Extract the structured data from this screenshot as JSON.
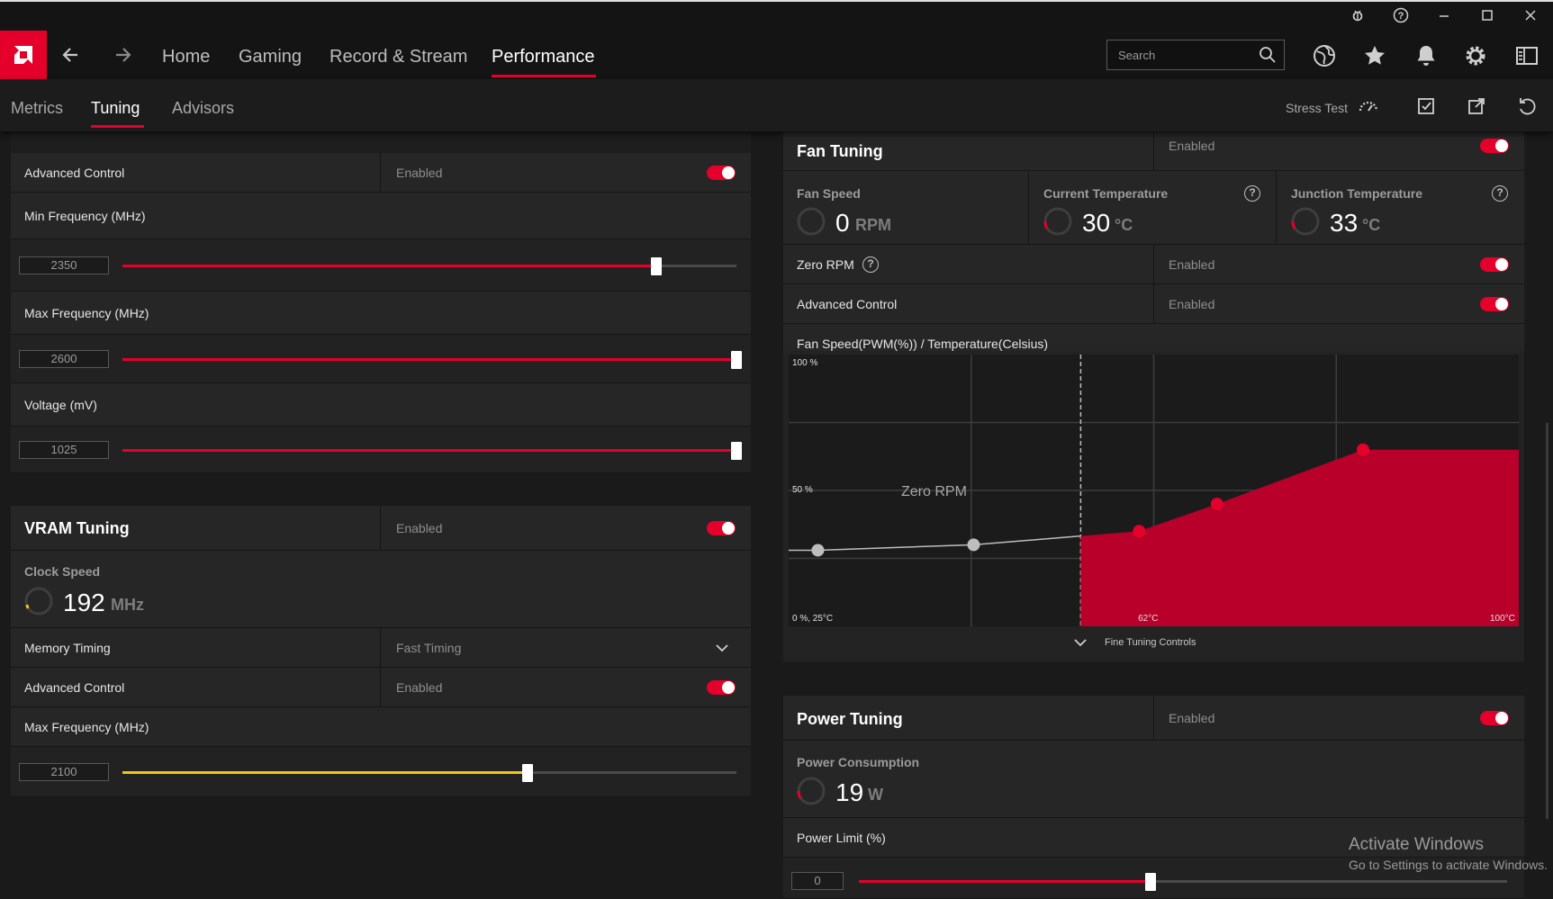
{
  "window": {
    "controls": [
      "bug-icon",
      "help-icon",
      "minimize-icon",
      "maximize-icon",
      "close-icon"
    ]
  },
  "nav": {
    "tabs": [
      "Home",
      "Gaming",
      "Record & Stream",
      "Performance"
    ],
    "active_tab": "Performance",
    "search_placeholder": "Search",
    "icons": [
      "globe-icon",
      "star-icon",
      "bell-icon",
      "gear-icon",
      "sidebar-icon"
    ]
  },
  "subnav": {
    "tabs": [
      "Metrics",
      "Tuning",
      "Advisors"
    ],
    "active_tab": "Tuning",
    "stress_test": "Stress Test"
  },
  "gpu_tuning": {
    "advanced_control_label": "Advanced Control",
    "advanced_control_value": "Enabled",
    "min_freq_label": "Min Frequency (MHz)",
    "min_freq_value": "2350",
    "min_freq_fraction": 0.87,
    "max_freq_label": "Max Frequency (MHz)",
    "max_freq_value": "2600",
    "max_freq_fraction": 1.0,
    "voltage_label": "Voltage (mV)",
    "voltage_value": "1025",
    "voltage_fraction": 1.0
  },
  "vram_tuning": {
    "title": "VRAM Tuning",
    "enabled_value": "Enabled",
    "clock_speed_label": "Clock Speed",
    "clock_speed_value": "192",
    "clock_speed_unit": "MHz",
    "memory_timing_label": "Memory Timing",
    "memory_timing_value": "Fast Timing",
    "advanced_control_label": "Advanced Control",
    "advanced_control_value": "Enabled",
    "max_freq_label": "Max Frequency (MHz)",
    "max_freq_value": "2100",
    "max_freq_fraction": 0.66
  },
  "fan_tuning": {
    "title": "Fan Tuning",
    "enabled_value": "Enabled",
    "fan_speed_label": "Fan Speed",
    "fan_speed_value": "0",
    "fan_speed_unit": "RPM",
    "current_temp_label": "Current Temperature",
    "current_temp_value": "30",
    "current_temp_unit": "°C",
    "junction_temp_label": "Junction Temperature",
    "junction_temp_value": "33",
    "junction_temp_unit": "°C",
    "zero_rpm_label": "Zero RPM",
    "zero_rpm_value": "Enabled",
    "advanced_control_label": "Advanced Control",
    "advanced_control_value": "Enabled",
    "curve_label": "Fan Speed(PWM(%)) / Temperature(Celsius)",
    "fine_tuning_label": "Fine Tuning Controls"
  },
  "chart_data": {
    "type": "area",
    "title": "Fan Speed(PWM(%)) / Temperature(Celsius)",
    "y_labels": [
      "100 %",
      "50 %",
      "0 %, 25°C"
    ],
    "x_labels": [
      "62°C",
      "100°C"
    ],
    "zero_rpm_label": "Zero RPM",
    "zero_rpm_threshold_x": 55,
    "xlim": [
      25,
      100
    ],
    "ylim": [
      0,
      100
    ],
    "points": [
      {
        "x": 28,
        "y": 28,
        "color": "#bdbdbd"
      },
      {
        "x": 44,
        "y": 30,
        "color": "#bdbdbd"
      },
      {
        "x": 61,
        "y": 35,
        "color": "#e4002b"
      },
      {
        "x": 69,
        "y": 45,
        "color": "#e4002b"
      },
      {
        "x": 84,
        "y": 65,
        "color": "#e4002b"
      }
    ],
    "end_y": 65,
    "grid": true
  },
  "power_tuning": {
    "title": "Power Tuning",
    "enabled_value": "Enabled",
    "consumption_label": "Power Consumption",
    "consumption_value": "19",
    "consumption_unit": "W",
    "limit_label": "Power Limit (%)",
    "limit_value": "0",
    "limit_fraction": 0.45
  },
  "watermark": {
    "line1": "Activate Windows",
    "line2": "Go to Settings to activate Windows."
  },
  "colors": {
    "accent": "#e4002b",
    "vram_slider": "#f2c416",
    "background": "#1a1a1a"
  }
}
